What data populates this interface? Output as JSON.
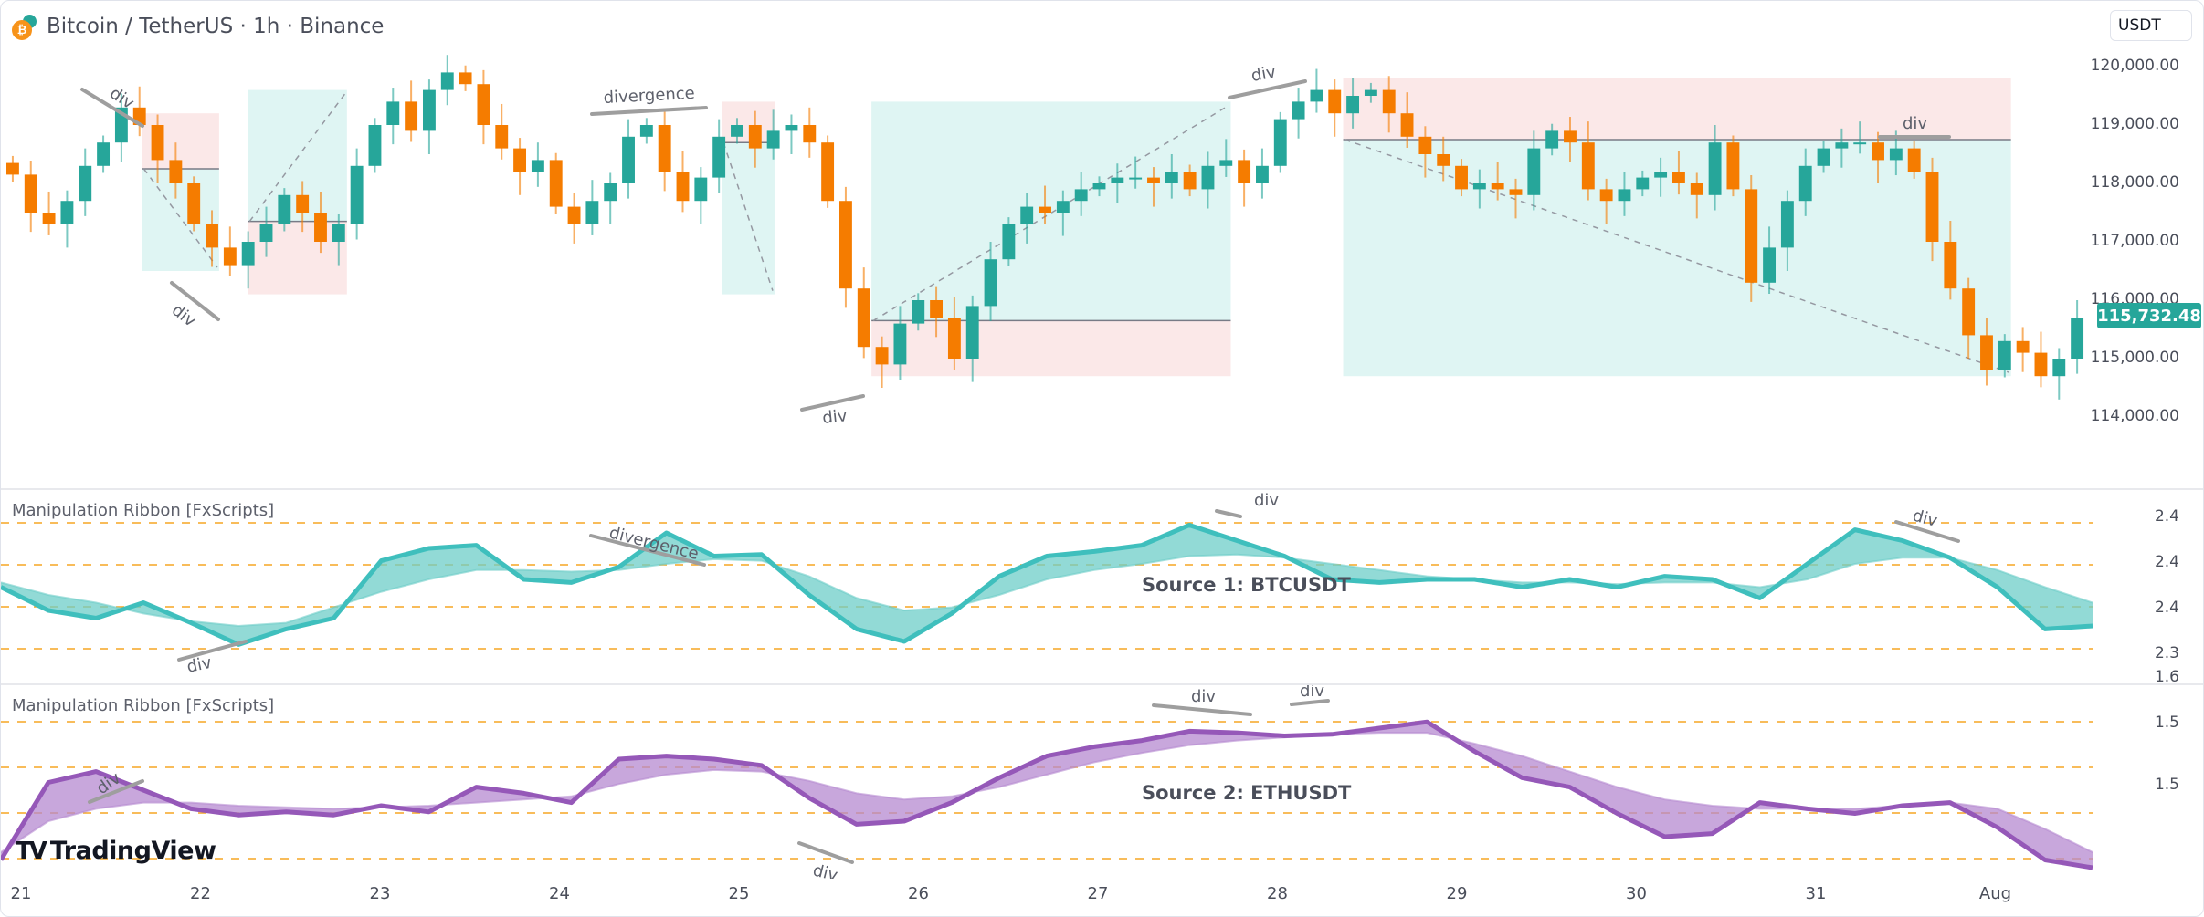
{
  "header": {
    "title": "Bitcoin / TetherUS · 1h · Binance",
    "icon": "bitcoin-tether-icon",
    "currency_unit": "USDT"
  },
  "colors": {
    "bull": "#26a69a",
    "bear": "#f57c00",
    "ribbon1_line": "#3fbfbd",
    "ribbon1_fill": "#6ecdc8",
    "ribbon2_line": "#9558b8",
    "ribbon2_fill": "#b58ad0",
    "level_line": "#f5a623",
    "profit_box": "#dff5f3",
    "loss_box": "#fbe8e8",
    "annotation": "#9e9e9e"
  },
  "price_axis": {
    "labels": [
      "120,000.00",
      "119,000.00",
      "118,000.00",
      "117,000.00",
      "116,000.00",
      "115,000.00",
      "114,000.00"
    ],
    "last_price": "115,732.48"
  },
  "time_axis": {
    "labels": [
      "21",
      "22",
      "23",
      "24",
      "25",
      "26",
      "27",
      "28",
      "29",
      "30",
      "31",
      "Aug"
    ]
  },
  "panes": {
    "indicator1": {
      "title": "Manipulation Ribbon [FxScripts]",
      "source_label": "Source 1: BTCUSDT",
      "axis_labels": [
        "2.4",
        "2.4",
        "2.4",
        "2.3"
      ]
    },
    "indicator2": {
      "title": "Manipulation Ribbon [FxScripts]",
      "source_label": "Source 2: ETHUSDT",
      "axis_labels": [
        "1.6",
        "1.5",
        "1.5"
      ]
    }
  },
  "annotations": {
    "main": [
      "div",
      "div",
      "divergence",
      "div",
      "div",
      "div"
    ],
    "indicator1": [
      "div",
      "divergence",
      "div",
      "div"
    ],
    "indicator2": [
      "div",
      "div",
      "div",
      "div"
    ]
  },
  "watermark": "TradingView",
  "chart_data": [
    {
      "type": "candlestick",
      "title": "Bitcoin / TetherUS · 1h · Binance",
      "xlabel": "",
      "ylabel": "USDT",
      "ylim": [
        113900,
        120300
      ],
      "x_ticks": [
        "21",
        "22",
        "23",
        "24",
        "25",
        "26",
        "27",
        "28",
        "29",
        "30",
        "31",
        "Aug"
      ],
      "y_ticks": [
        114000,
        115000,
        116000,
        117000,
        118000,
        119000,
        120000
      ],
      "last_price": 115732.48,
      "close_path": [
        118150,
        117500,
        117300,
        117700,
        118300,
        118700,
        119300,
        119000,
        118400,
        118000,
        117300,
        116900,
        116600,
        117000,
        117300,
        117800,
        117500,
        117000,
        117300,
        118300,
        119000,
        119400,
        118900,
        119600,
        119900,
        119700,
        119000,
        118600,
        118200,
        118400,
        117600,
        117300,
        117700,
        118000,
        118800,
        119000,
        118200,
        117700,
        118100,
        118800,
        119000,
        118600,
        118900,
        119000,
        118700,
        117700,
        116200,
        115200,
        114900,
        115600,
        116000,
        115700,
        115000,
        115900,
        116700,
        117300,
        117600,
        117500,
        117700,
        117900,
        118000,
        118100,
        118100,
        118000,
        118200,
        117900,
        118300,
        118400,
        118000,
        118300,
        119100,
        119400,
        119600,
        119200,
        119500,
        119600,
        119200,
        118800,
        118500,
        118300,
        117900,
        118000,
        117900,
        117800,
        118600,
        118900,
        118700,
        117900,
        117700,
        117900,
        118100,
        118200,
        118000,
        117800,
        118700,
        117900,
        116300,
        116900,
        117700,
        118300,
        118600,
        118700,
        118700,
        118400,
        118600,
        118200,
        117000,
        116200,
        115400,
        114800,
        115300,
        115100,
        114700,
        115000,
        115700
      ],
      "trade_boxes": [
        {
          "x0": 0.064,
          "x1": 0.099,
          "entry": 118250,
          "target": 116500,
          "stop": 119200,
          "side": "short"
        },
        {
          "x0": 0.112,
          "x1": 0.157,
          "entry": 117350,
          "target": 119600,
          "stop": 116100,
          "side": "long"
        },
        {
          "x0": 0.327,
          "x1": 0.351,
          "entry": 118700,
          "target": 116100,
          "stop": 119400,
          "side": "short"
        },
        {
          "x0": 0.395,
          "x1": 0.558,
          "entry": 115650,
          "target": 119400,
          "stop": 114700,
          "side": "long"
        },
        {
          "x0": 0.609,
          "x1": 0.912,
          "entry": 118750,
          "target": 114700,
          "stop": 119800,
          "side": "short"
        }
      ]
    },
    {
      "type": "area",
      "title": "Manipulation Ribbon [FxScripts] — Source 1: BTCUSDT",
      "ylim": [
        2.28,
        2.42
      ],
      "y_ticks": [
        "2.4",
        "2.4",
        "2.4",
        "2.3"
      ],
      "level_lines": 4,
      "series": [
        {
          "name": "fast",
          "values": [
            0.55,
            0.4,
            0.35,
            0.45,
            0.32,
            0.18,
            0.28,
            0.35,
            0.72,
            0.8,
            0.82,
            0.6,
            0.58,
            0.68,
            0.9,
            0.75,
            0.76,
            0.5,
            0.28,
            0.2,
            0.38,
            0.62,
            0.75,
            0.78,
            0.82,
            0.95,
            0.85,
            0.75,
            0.6,
            0.58,
            0.6,
            0.6,
            0.55,
            0.6,
            0.55,
            0.62,
            0.6,
            0.48,
            0.7,
            0.92,
            0.85,
            0.74,
            0.55,
            0.28,
            0.3
          ]
        },
        {
          "name": "slow",
          "values": [
            0.58,
            0.5,
            0.45,
            0.38,
            0.33,
            0.3,
            0.32,
            0.42,
            0.52,
            0.6,
            0.66,
            0.66,
            0.65,
            0.66,
            0.7,
            0.73,
            0.72,
            0.62,
            0.48,
            0.4,
            0.42,
            0.5,
            0.6,
            0.66,
            0.7,
            0.75,
            0.76,
            0.74,
            0.7,
            0.66,
            0.62,
            0.6,
            0.58,
            0.58,
            0.57,
            0.58,
            0.58,
            0.55,
            0.6,
            0.7,
            0.74,
            0.74,
            0.66,
            0.55,
            0.45
          ]
        }
      ]
    },
    {
      "type": "area",
      "title": "Manipulation Ribbon [FxScripts] — Source 2: ETHUSDT",
      "ylim": [
        1.45,
        1.62
      ],
      "y_ticks": [
        "1.6",
        "1.5",
        "1.5"
      ],
      "level_lines": 4,
      "series": [
        {
          "name": "fast",
          "values": [
            0.05,
            0.55,
            0.62,
            0.5,
            0.38,
            0.34,
            0.36,
            0.34,
            0.4,
            0.36,
            0.52,
            0.48,
            0.42,
            0.7,
            0.72,
            0.7,
            0.66,
            0.45,
            0.28,
            0.3,
            0.42,
            0.58,
            0.72,
            0.78,
            0.82,
            0.88,
            0.87,
            0.85,
            0.86,
            0.9,
            0.94,
            0.75,
            0.58,
            0.52,
            0.35,
            0.2,
            0.22,
            0.42,
            0.38,
            0.35,
            0.4,
            0.42,
            0.26,
            0.05,
            0.0
          ]
        },
        {
          "name": "slow",
          "values": [
            0.1,
            0.3,
            0.38,
            0.42,
            0.42,
            0.4,
            0.39,
            0.38,
            0.39,
            0.4,
            0.42,
            0.44,
            0.46,
            0.54,
            0.6,
            0.63,
            0.62,
            0.56,
            0.48,
            0.44,
            0.46,
            0.52,
            0.6,
            0.68,
            0.74,
            0.79,
            0.82,
            0.84,
            0.86,
            0.87,
            0.87,
            0.8,
            0.72,
            0.62,
            0.52,
            0.44,
            0.4,
            0.38,
            0.38,
            0.38,
            0.4,
            0.42,
            0.38,
            0.25,
            0.1
          ]
        }
      ]
    }
  ]
}
